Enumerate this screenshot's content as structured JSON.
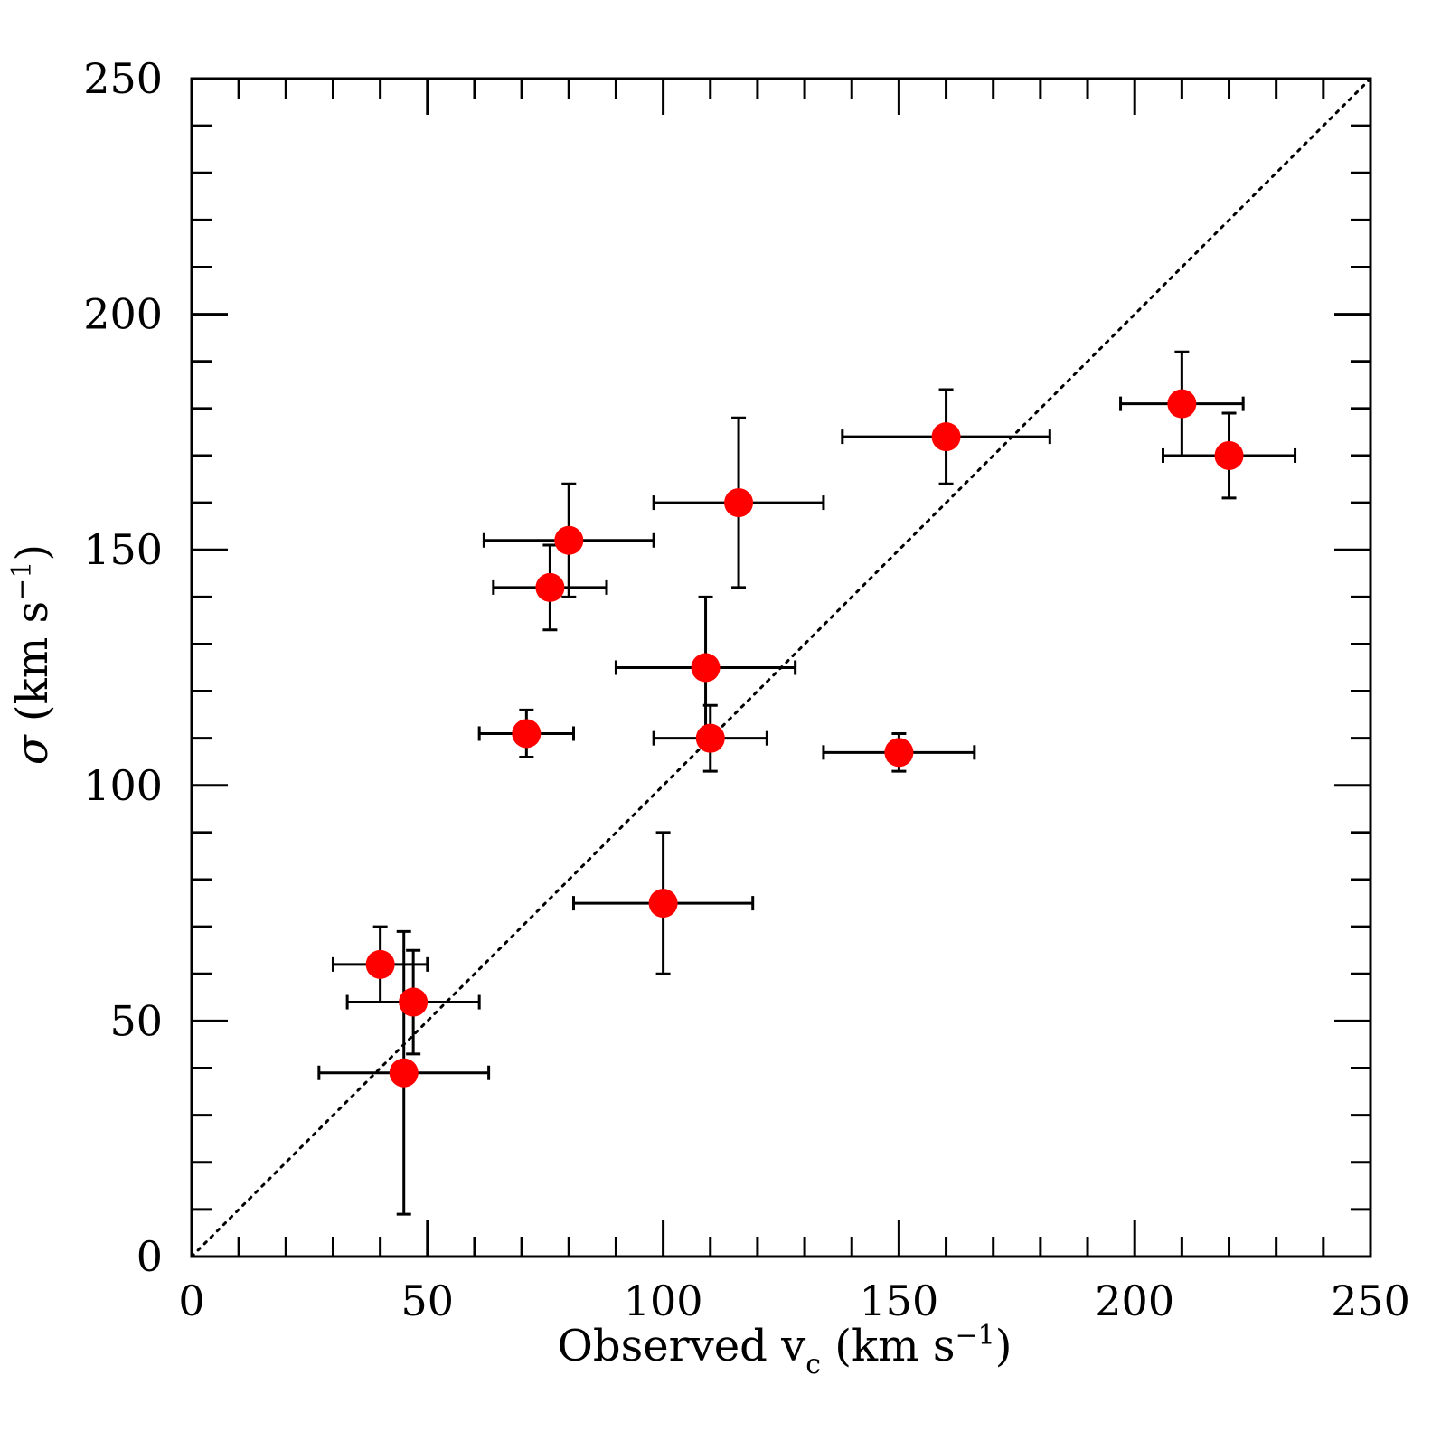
{
  "chart_data": {
    "type": "scatter",
    "title": "",
    "xlabel": {
      "main": "Observed v",
      "sub": "c",
      "unit_open": " (km s",
      "sup": "−1",
      "unit_close": ")"
    },
    "ylabel": {
      "symbol": "σ",
      "unit_open": " (km s",
      "sup": "−1",
      "unit_close": ")"
    },
    "xlim": [
      0,
      250
    ],
    "ylim": [
      0,
      250
    ],
    "major_ticks": [
      0,
      50,
      100,
      150,
      200,
      250
    ],
    "tick_labels": [
      "0",
      "50",
      "100",
      "150",
      "200",
      "250"
    ],
    "minor_step": 10,
    "reference_line": {
      "style": "dotted",
      "from": [
        0,
        0
      ],
      "to": [
        250,
        250
      ]
    },
    "marker_color": "#ff0000",
    "points": [
      {
        "x": 40,
        "y": 62,
        "xerr": 10,
        "yerr": 8
      },
      {
        "x": 47,
        "y": 54,
        "xerr": 14,
        "yerr": 11
      },
      {
        "x": 45,
        "y": 39,
        "xerr": 18,
        "yerr": 30
      },
      {
        "x": 71,
        "y": 111,
        "xerr": 10,
        "yerr": 5
      },
      {
        "x": 76,
        "y": 142,
        "xerr": 12,
        "yerr": 9
      },
      {
        "x": 80,
        "y": 152,
        "xerr": 18,
        "yerr": 12
      },
      {
        "x": 100,
        "y": 75,
        "xerr": 19,
        "yerr": 15
      },
      {
        "x": 109,
        "y": 125,
        "xerr": 19,
        "yerr": 15
      },
      {
        "x": 110,
        "y": 110,
        "xerr": 12,
        "yerr": 7
      },
      {
        "x": 116,
        "y": 160,
        "xerr": 18,
        "yerr": 18
      },
      {
        "x": 150,
        "y": 107,
        "xerr": 16,
        "yerr": 4
      },
      {
        "x": 160,
        "y": 174,
        "xerr": 22,
        "yerr": 10
      },
      {
        "x": 210,
        "y": 181,
        "xerr": 13,
        "yerr": 11
      },
      {
        "x": 220,
        "y": 170,
        "xerr": 14,
        "yerr": 9
      }
    ]
  }
}
